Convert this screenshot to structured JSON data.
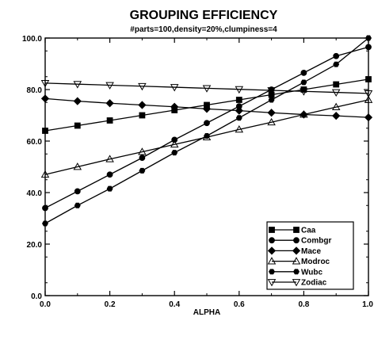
{
  "chart_data": {
    "type": "line",
    "title": "GROUPING EFFICIENCY",
    "subtitle": "#parts=100,density=20%,clumpiness=4",
    "xlabel": "ALPHA",
    "ylabel": "",
    "xlim": [
      0.0,
      1.0
    ],
    "ylim": [
      0.0,
      100.0
    ],
    "x_ticks": [
      "0.0",
      "0.2",
      "0.4",
      "0.6",
      "0.8",
      "1.0"
    ],
    "y_ticks": [
      "0.0",
      "20.0",
      "40.0",
      "60.0",
      "80.0",
      "100.0"
    ],
    "grid": false,
    "legend_position": "bottom-right",
    "x": [
      0.0,
      0.1,
      0.2,
      0.3,
      0.4,
      0.5,
      0.6,
      0.7,
      0.8,
      0.9,
      1.0
    ],
    "series": [
      {
        "name": "Caa",
        "marker": "square",
        "values": [
          64.0,
          66.0,
          68.0,
          70.0,
          72.0,
          74.0,
          76.0,
          78.0,
          80.0,
          82.0,
          84.0
        ]
      },
      {
        "name": "Combgr",
        "marker": "circle",
        "values": [
          34.0,
          40.5,
          47.0,
          53.5,
          60.5,
          67.0,
          73.5,
          80.0,
          86.5,
          93.0,
          96.5
        ]
      },
      {
        "name": "Mace",
        "marker": "diamond",
        "values": [
          76.5,
          75.5,
          74.7,
          74.0,
          73.3,
          72.5,
          71.8,
          71.0,
          70.3,
          69.8,
          69.2
        ]
      },
      {
        "name": "Modroc",
        "marker": "triangle-up",
        "values": [
          47.0,
          50.0,
          53.0,
          55.8,
          58.7,
          61.5,
          64.5,
          67.3,
          70.3,
          73.2,
          76.0
        ]
      },
      {
        "name": "Wubc",
        "marker": "hexagon",
        "values": [
          28.0,
          35.0,
          41.5,
          48.5,
          55.5,
          62.0,
          69.0,
          76.0,
          82.8,
          89.8,
          100.0
        ]
      },
      {
        "name": "Zodiac",
        "marker": "triangle-down",
        "values": [
          82.5,
          82.1,
          81.7,
          81.3,
          80.9,
          80.5,
          80.1,
          79.7,
          79.3,
          78.9,
          78.5
        ]
      }
    ]
  }
}
